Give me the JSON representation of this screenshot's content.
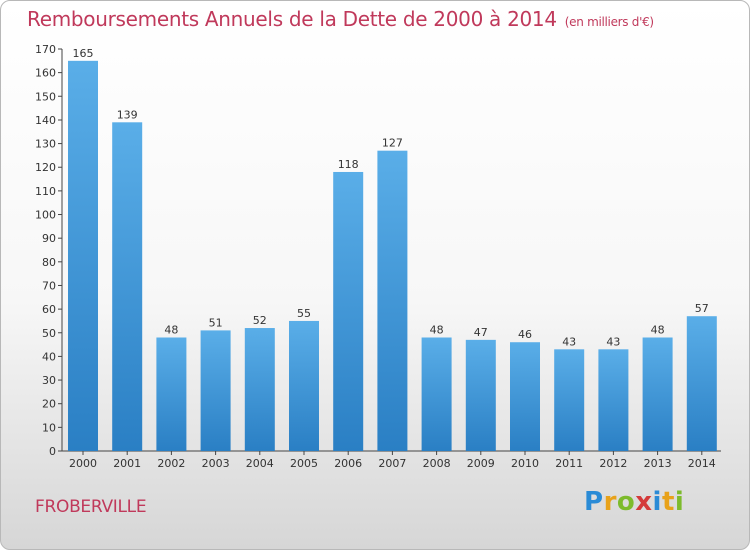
{
  "header": {
    "title": "Remboursements Annuels de la Dette de 2000 à 2014",
    "unit": "(en milliers d'€)"
  },
  "footer": {
    "commune": "FROBERVILLE",
    "logo": [
      "P",
      "r",
      "o",
      "x",
      "i",
      "t",
      "i"
    ]
  },
  "colors": {
    "title": "#c0395b",
    "bar_top": "#5aaee8",
    "bar_bottom": "#2a7fc4"
  },
  "chart_data": {
    "type": "bar",
    "title": "Remboursements Annuels de la Dette de 2000 à 2014",
    "subtitle": "(en milliers d'€)",
    "xlabel": "",
    "ylabel": "",
    "categories": [
      "2000",
      "2001",
      "2002",
      "2003",
      "2004",
      "2005",
      "2006",
      "2007",
      "2008",
      "2009",
      "2010",
      "2011",
      "2012",
      "2013",
      "2014"
    ],
    "values": [
      165,
      139,
      48,
      51,
      52,
      55,
      118,
      127,
      48,
      47,
      46,
      43,
      43,
      48,
      57
    ],
    "ylim": [
      0,
      170
    ],
    "yticks": [
      0,
      10,
      20,
      30,
      40,
      50,
      60,
      70,
      80,
      90,
      100,
      110,
      120,
      130,
      140,
      150,
      160,
      170
    ],
    "grid": false,
    "data_labels": true
  }
}
